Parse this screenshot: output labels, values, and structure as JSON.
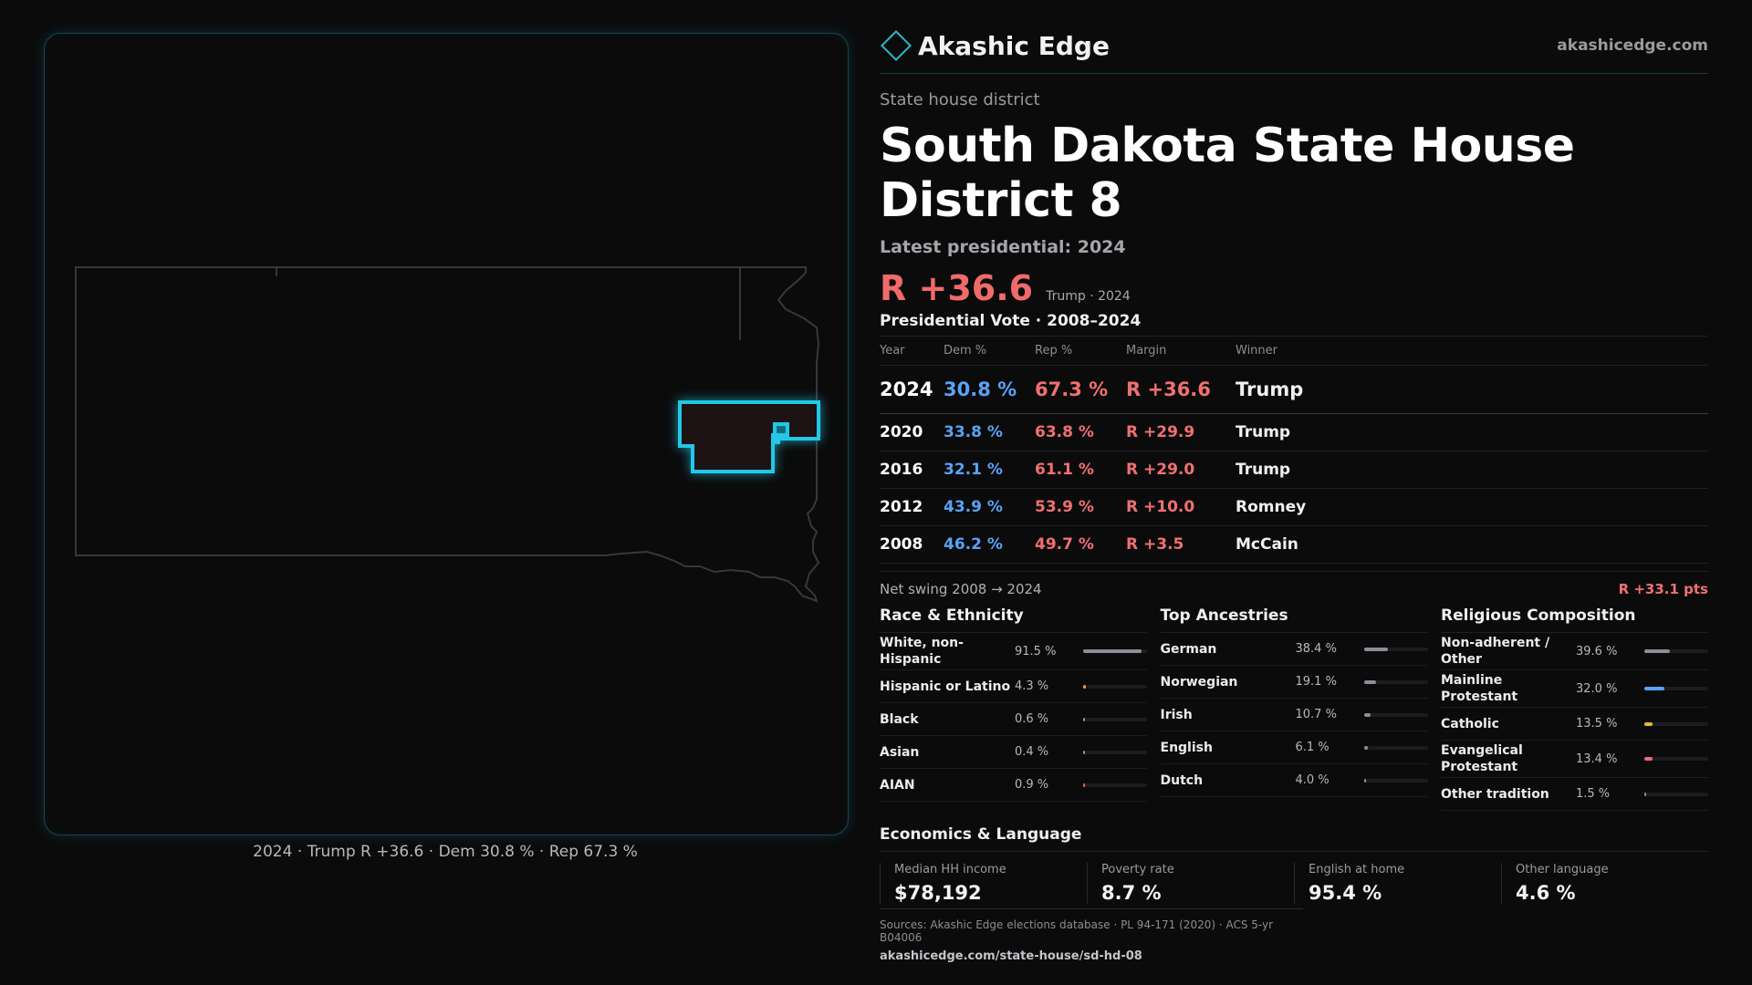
{
  "map": {
    "caption": "2024 · Trump R +36.6 · Dem 30.8 % · Rep 67.3 %"
  },
  "brand": {
    "name": "Akashic Edge",
    "site": "akashicedge.com"
  },
  "kicker": "State house district",
  "title": "South Dakota State House District 8",
  "subtitle": "Latest presidential: 2024",
  "headline_margin": {
    "value": "R +36.6",
    "note": "Trump · 2024"
  },
  "votes": {
    "heading": "Presidential Vote · 2008–2024",
    "columns": [
      "Year",
      "Dem %",
      "Rep %",
      "Margin",
      "Winner"
    ],
    "rows": [
      {
        "year": "2024",
        "dem": "30.8 %",
        "rep": "67.3 %",
        "margin": "R +36.6",
        "winner": "Trump"
      },
      {
        "year": "2020",
        "dem": "33.8 %",
        "rep": "63.8 %",
        "margin": "R +29.9",
        "winner": "Trump"
      },
      {
        "year": "2016",
        "dem": "32.1 %",
        "rep": "61.1 %",
        "margin": "R +29.0",
        "winner": "Trump"
      },
      {
        "year": "2012",
        "dem": "43.9 %",
        "rep": "53.9 %",
        "margin": "R +10.0",
        "winner": "Romney"
      },
      {
        "year": "2008",
        "dem": "46.2 %",
        "rep": "49.7 %",
        "margin": "R +3.5",
        "winner": "McCain"
      }
    ],
    "swing_label": "Net swing 2008 → 2024",
    "swing_value": "R +33.1 pts"
  },
  "race": {
    "heading": "Race & Ethnicity",
    "items": [
      {
        "label": "White, non-Hispanic",
        "value": "91.5 %",
        "fraction": 0.915
      },
      {
        "label": "Hispanic or Latino",
        "value": "4.3 %",
        "fraction": 0.043
      },
      {
        "label": "Black",
        "value": "0.6 %",
        "fraction": 0.006
      },
      {
        "label": "Asian",
        "value": "0.4 %",
        "fraction": 0.004
      },
      {
        "label": "AIAN",
        "value": "0.9 %",
        "fraction": 0.009
      }
    ]
  },
  "ancestry": {
    "heading": "Top Ancestries",
    "items": [
      {
        "label": "German",
        "value": "38.4 %",
        "fraction": 0.384
      },
      {
        "label": "Norwegian",
        "value": "19.1 %",
        "fraction": 0.191
      },
      {
        "label": "Irish",
        "value": "10.7 %",
        "fraction": 0.107
      },
      {
        "label": "English",
        "value": "6.1 %",
        "fraction": 0.061
      },
      {
        "label": "Dutch",
        "value": "4.0 %",
        "fraction": 0.04
      }
    ]
  },
  "religion": {
    "heading": "Religious Composition",
    "items": [
      {
        "label": "Non-adherent / Other",
        "value": "39.6 %",
        "fraction": 0.396
      },
      {
        "label": "Mainline Protestant",
        "value": "32.0 %",
        "fraction": 0.32
      },
      {
        "label": "Catholic",
        "value": "13.5 %",
        "fraction": 0.135
      },
      {
        "label": "Evangelical Protestant",
        "value": "13.4 %",
        "fraction": 0.134
      },
      {
        "label": "Other tradition",
        "value": "1.5 %",
        "fraction": 0.015
      }
    ]
  },
  "economics": {
    "heading": "Economics & Language",
    "cells": [
      {
        "label": "Median HH income",
        "value": "$78,192"
      },
      {
        "label": "Poverty rate",
        "value": "8.7 %"
      },
      {
        "label": "English at home",
        "value": "95.4 %"
      },
      {
        "label": "Other language",
        "value": "4.6 %"
      }
    ]
  },
  "sources": {
    "text": "Sources: Akashic Edge elections database · PL 94-171 (2020) · ACS 5-yr B04006",
    "url": "akashicedge.com/state-house/sd-hd-08"
  },
  "colors": {
    "dem": "#5aa2f5",
    "rep": "#f07070",
    "accent": "#2bd0ea",
    "bar_neutral": "#8a8f99",
    "bar_hispanic": "#e0a030",
    "bar_aian": "#e07040",
    "bar_mainline": "#5aa2f5",
    "bar_catholic": "#e8b830",
    "bar_evangelical": "#f06a80"
  }
}
